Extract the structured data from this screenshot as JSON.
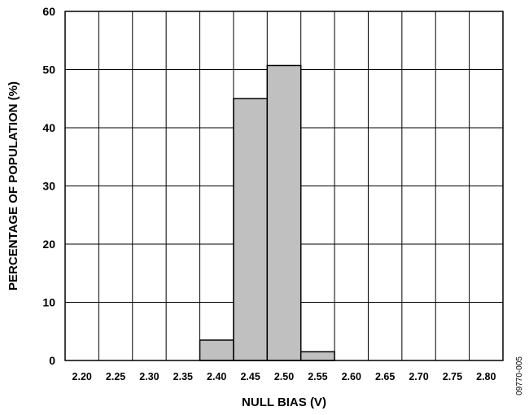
{
  "chart_data": {
    "type": "bar",
    "title": "",
    "xlabel": "NULL BIAS (V)",
    "ylabel": "PERCENTAGE OF POPULATION (%)",
    "ylim": [
      0,
      60
    ],
    "yticks": [
      "0",
      "10",
      "20",
      "30",
      "40",
      "50",
      "60"
    ],
    "categories": [
      "2.20",
      "2.25",
      "2.30",
      "2.35",
      "2.40",
      "2.45",
      "2.50",
      "2.55",
      "2.60",
      "2.65",
      "2.70",
      "2.75",
      "2.80"
    ],
    "values": [
      0,
      0,
      0,
      0,
      3.5,
      45,
      50.7,
      1.5,
      0,
      0,
      0,
      0,
      0
    ],
    "grid": true,
    "bar_color": "#c0c0c0",
    "edge_color": "#000000"
  },
  "figure_id": "09770-005"
}
